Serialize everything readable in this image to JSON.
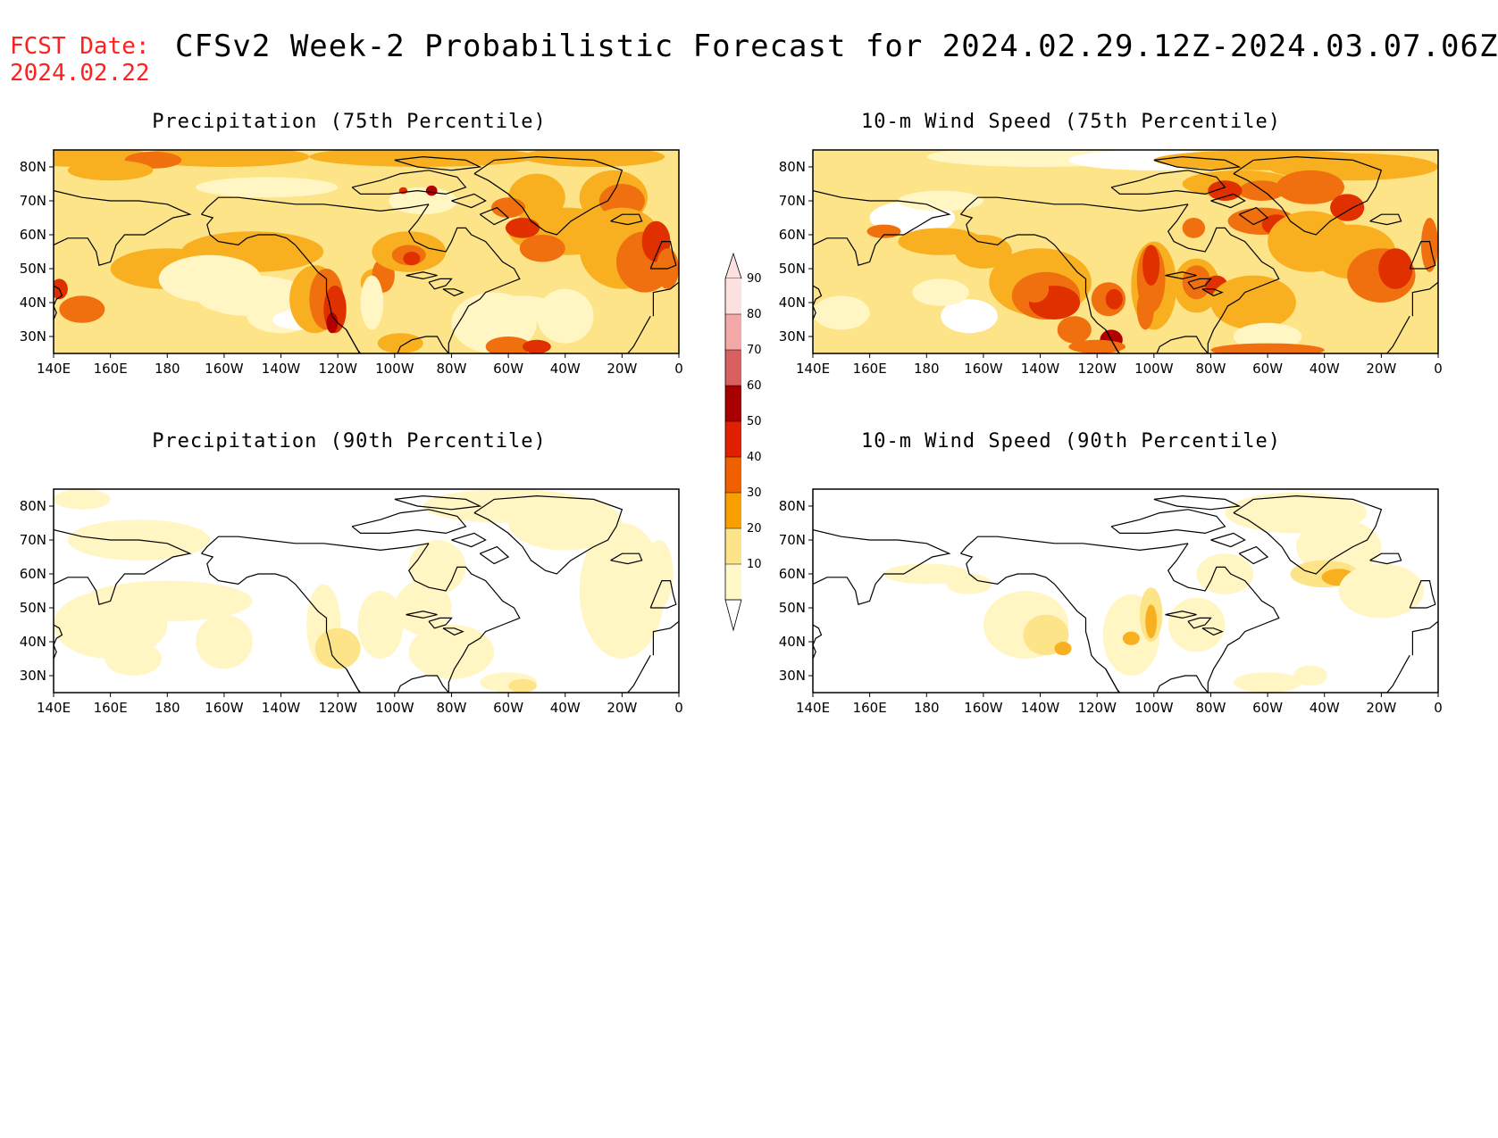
{
  "header": {
    "fcst_date_label": "FCST Date:",
    "fcst_date_value": "2024.02.22",
    "title": "CFSv2 Week-2 Probabilistic Forecast for 2024.02.29.12Z-2024.03.07.06Z",
    "fcst_color": "#ff2020"
  },
  "axes": {
    "lat_ticks": [
      "80N",
      "70N",
      "60N",
      "50N",
      "40N",
      "30N"
    ],
    "lon_ticks": [
      "140E",
      "160E",
      "180",
      "160W",
      "140W",
      "120W",
      "100W",
      "80W",
      "60W",
      "40W",
      "20W",
      "0"
    ],
    "lon_range": "140E to 0",
    "lat_range": "25N to 85N"
  },
  "panels": [
    {
      "id": "precip75",
      "title": "Precipitation (75th Percentile)"
    },
    {
      "id": "wind75",
      "title": "10-m Wind Speed (75th Percentile)"
    },
    {
      "id": "precip90",
      "title": "Precipitation (90th Percentile)"
    },
    {
      "id": "wind90",
      "title": "10-m Wind Speed (90th Percentile)"
    }
  ],
  "colorbar": {
    "levels": [
      "90",
      "80",
      "70",
      "60",
      "50",
      "40",
      "30",
      "20",
      "10"
    ],
    "colors": [
      "#fde0e0",
      "#f4a8a8",
      "#d86060",
      "#a80000",
      "#e02000",
      "#f06000",
      "#f8a000",
      "#fde488",
      "#fff8c8"
    ]
  },
  "palette": {
    "p10": "#fff6c4",
    "p20": "#fde488",
    "p30": "#f8b020",
    "p40": "#f07010",
    "p50": "#e03000",
    "p60": "#b00000",
    "coast": "#000000"
  }
}
